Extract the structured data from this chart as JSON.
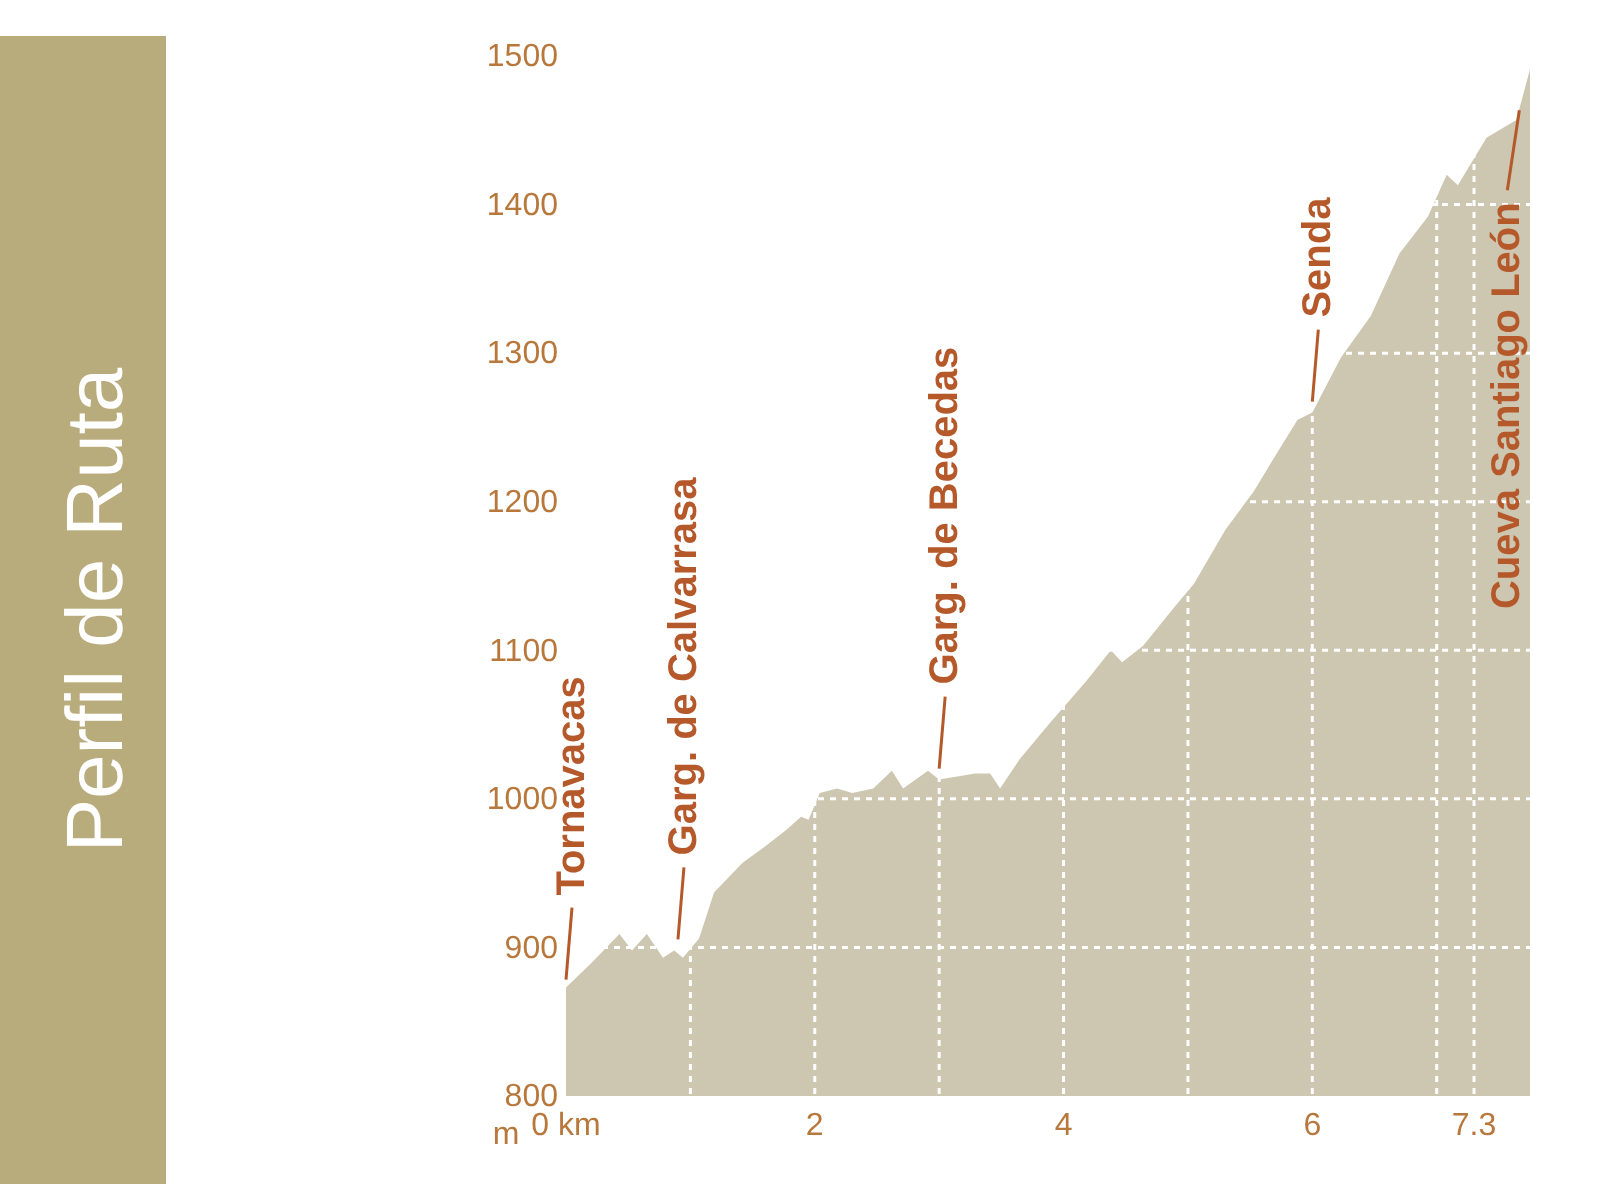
{
  "chart_data": {
    "type": "area",
    "title": "Perfil de Ruta",
    "ylabel": "m",
    "x": [
      0,
      0.21,
      0.43,
      0.53,
      0.65,
      0.78,
      0.87,
      0.94,
      1.07,
      1.19,
      1.42,
      1.6,
      1.77,
      1.89,
      1.95,
      2.04,
      2.18,
      2.3,
      2.47,
      2.62,
      2.71,
      2.91,
      3.0,
      3.29,
      3.41,
      3.49,
      3.65,
      3.88,
      4.19,
      4.38,
      4.47,
      4.64,
      4.89,
      5.05,
      5.3,
      5.53,
      5.71,
      5.88,
      6.0,
      6.23,
      6.47,
      6.7,
      6.93,
      7.08,
      7.17,
      7.4,
      7.64,
      7.75
    ],
    "series": [
      {
        "color": "#cdc6b1",
        "values": [
          873,
          890,
          909,
          898,
          909,
          893,
          898,
          893,
          906,
          937,
          957,
          968,
          979,
          988,
          986,
          1004,
          1007,
          1004,
          1007,
          1019,
          1007,
          1019,
          1013,
          1017,
          1017,
          1007,
          1027,
          1050,
          1080,
          1100,
          1092,
          1103,
          1129,
          1145,
          1181,
          1207,
          1232,
          1255,
          1260,
          1297,
          1325,
          1367,
          1392,
          1420,
          1413,
          1445,
          1457,
          1491
        ]
      }
    ],
    "xlim": [
      0,
      7.75
    ],
    "ylim": [
      800,
      1500
    ],
    "xticks": [
      {
        "value": 0,
        "label": "0 km"
      },
      {
        "value": 1,
        "label": null
      },
      2,
      {
        "value": 3,
        "label": null
      },
      4,
      {
        "value": 5,
        "label": null
      },
      6,
      {
        "value": 7,
        "label": null
      },
      7.3
    ],
    "yticks": [
      800,
      900,
      1000,
      1100,
      1200,
      1300,
      1400,
      1500
    ],
    "grid": true,
    "annotations": [
      {
        "text": "Tornavacas",
        "x": 0,
        "y": 873
      },
      {
        "text": "Garg. de Calvarrasa",
        "x": 0.9,
        "y": 900
      },
      {
        "text": "Garg. de Becedas",
        "x": 3.0,
        "y": 1015
      },
      {
        "text": "Senda",
        "x": 6.0,
        "y": 1262
      },
      {
        "text": "Cueva Santiago León",
        "x": 7.6,
        "y": 1450
      }
    ]
  }
}
